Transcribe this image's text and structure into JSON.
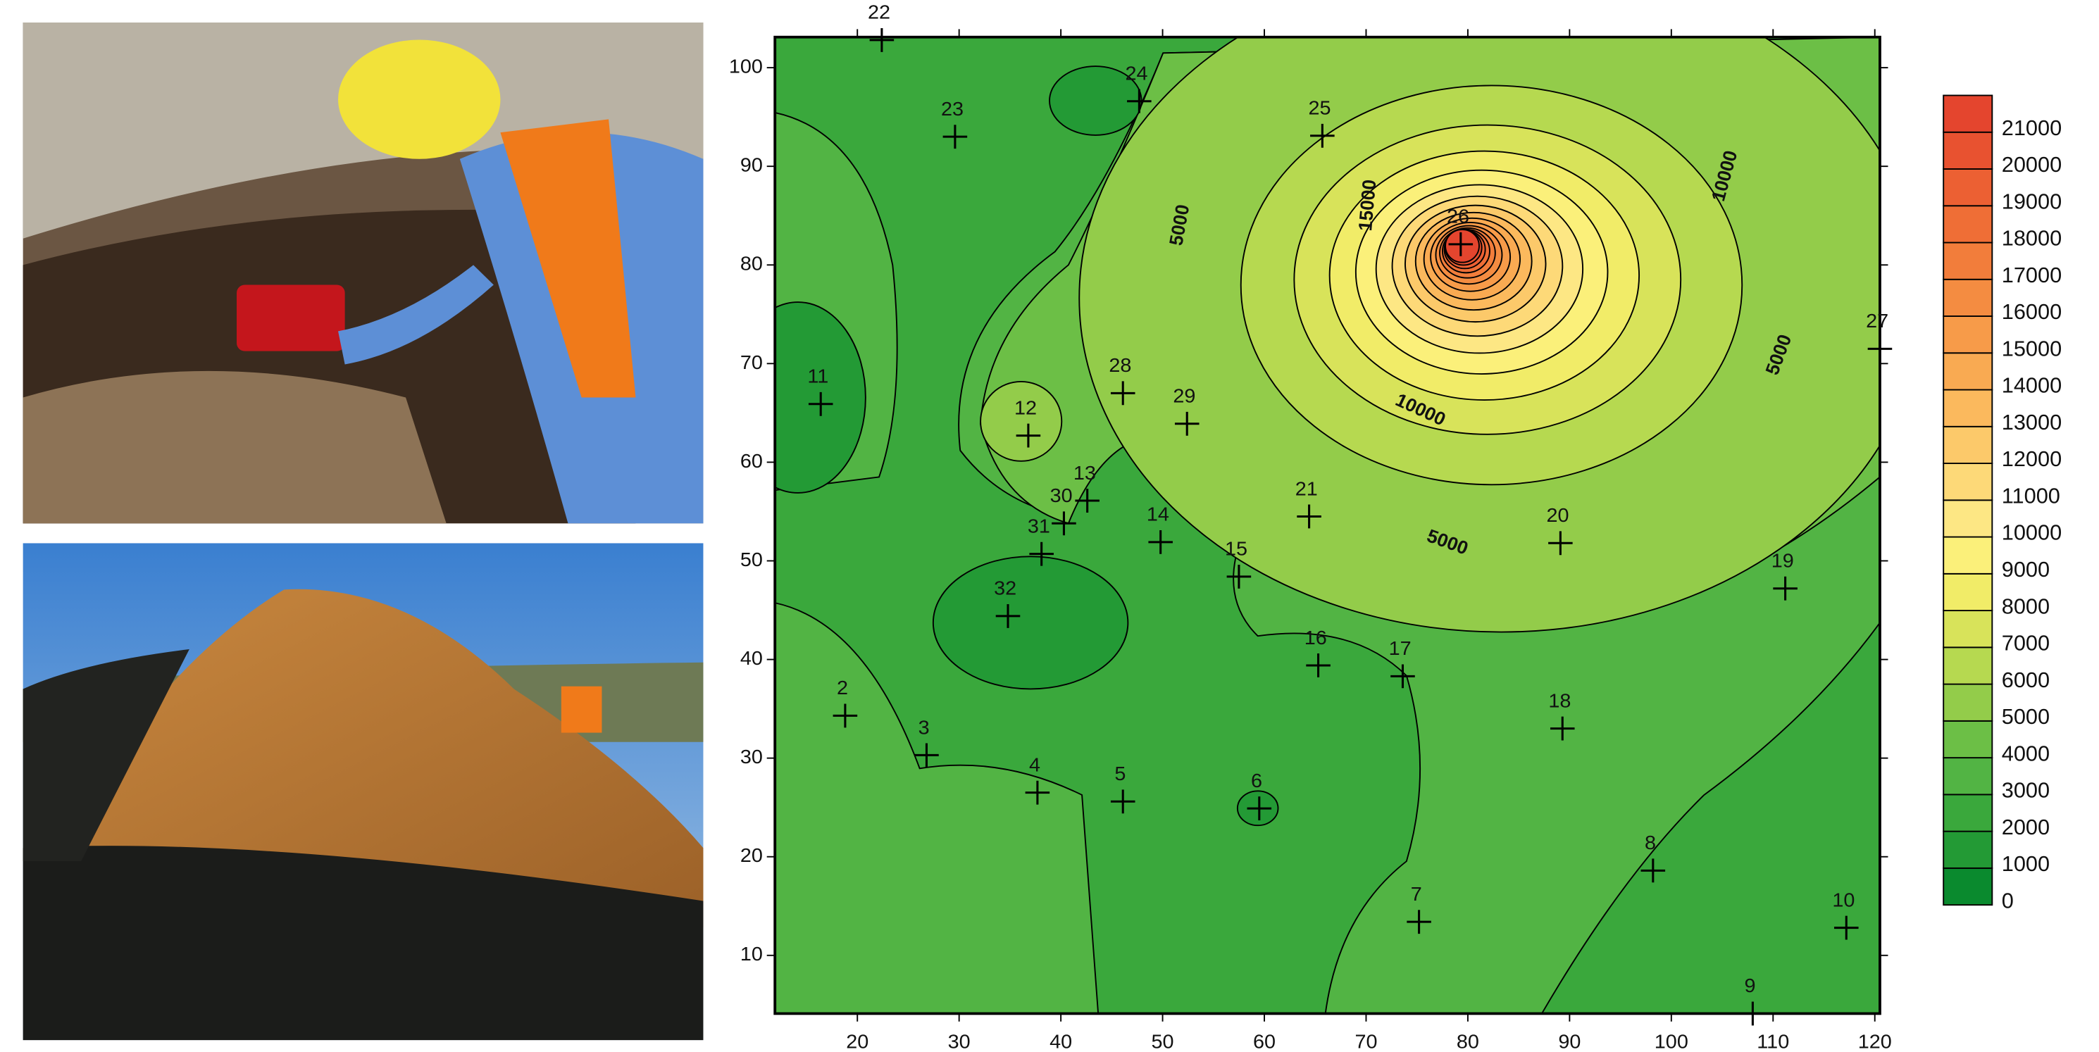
{
  "chart_data": {
    "type": "contour",
    "xlim": [
      11.9,
      120.5
    ],
    "ylim": [
      4.1,
      103.1
    ],
    "xticks": [
      20,
      30,
      40,
      50,
      60,
      70,
      80,
      90,
      100,
      110,
      120
    ],
    "yticks": [
      10,
      20,
      30,
      40,
      50,
      60,
      70,
      80,
      90,
      100
    ],
    "levels": [
      0,
      1000,
      2000,
      3000,
      4000,
      5000,
      6000,
      7000,
      8000,
      9000,
      10000,
      11000,
      12000,
      13000,
      14000,
      15000,
      16000,
      17000,
      18000,
      19000,
      20000,
      21000
    ],
    "colors": [
      "#0a8a2e",
      "#239a35",
      "#3aa83c",
      "#52b444",
      "#6cbf46",
      "#93cc4a",
      "#b6d950",
      "#d8e35a",
      "#f1ec68",
      "#fbf07a",
      "#fde784",
      "#fdd978",
      "#fcc96a",
      "#fbb95d",
      "#f9aa52",
      "#f79b49",
      "#f48c41",
      "#f27d3b",
      "#ef6e36",
      "#ec6033",
      "#e85230",
      "#e4452e"
    ],
    "points": {
      "labels": [
        "22",
        "23",
        "24",
        "25",
        "26",
        "27",
        "11",
        "12",
        "28",
        "29",
        "13",
        "30",
        "31",
        "14",
        "15",
        "21",
        "20",
        "19",
        "32",
        "16",
        "17",
        "18",
        "2",
        "3",
        "4",
        "5",
        "6",
        "8",
        "7",
        "10",
        "9"
      ],
      "x": [
        22.4,
        29.6,
        47.7,
        65.7,
        79.3,
        120.5,
        16.4,
        36.8,
        46.1,
        52.4,
        42.6,
        40.3,
        38.1,
        49.8,
        57.5,
        64.4,
        89.1,
        111.2,
        34.8,
        65.3,
        73.6,
        89.3,
        18.8,
        26.8,
        37.7,
        46.1,
        59.5,
        98.2,
        75.2,
        117.2,
        108.0
      ],
      "y": [
        102.8,
        93.0,
        96.6,
        93.1,
        82.1,
        71.5,
        65.9,
        62.7,
        67.0,
        63.9,
        56.1,
        53.8,
        50.7,
        51.9,
        48.4,
        54.5,
        51.8,
        47.2,
        44.4,
        39.4,
        38.3,
        33.0,
        34.3,
        30.3,
        26.5,
        25.6,
        24.9,
        18.6,
        13.4,
        12.8,
        4.1
      ]
    },
    "contour_labels": [
      5000,
      15000,
      10000,
      5000,
      10000,
      5000
    ]
  }
}
